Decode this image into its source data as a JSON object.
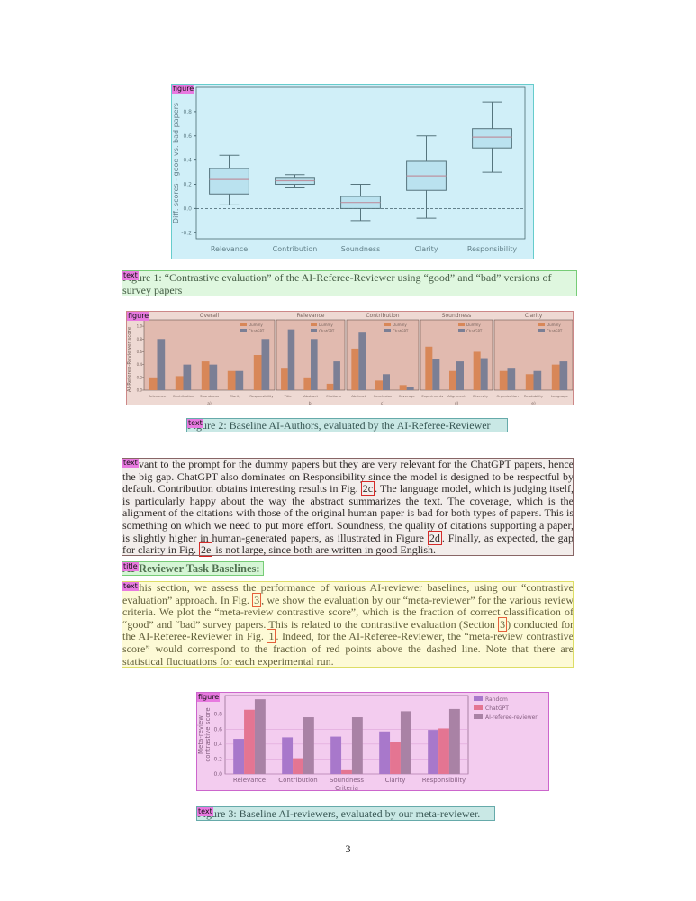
{
  "annotations": {
    "figure": "figure",
    "text": "text",
    "title": "title"
  },
  "figures": [
    {
      "type": "box",
      "ylabel": "Diff. scores - good vs. bad papers",
      "color": "#c8dde8",
      "point_color": "#e0707a",
      "categories": [
        "Relevance",
        "Contribution",
        "Soundness",
        "Clarity",
        "Responsibility"
      ],
      "boxes": [
        {
          "min": 0.03,
          "q1": 0.12,
          "median": 0.24,
          "q3": 0.33,
          "max": 0.44
        },
        {
          "min": 0.17,
          "q1": 0.2,
          "median": 0.23,
          "q3": 0.25,
          "max": 0.28
        },
        {
          "min": -0.1,
          "q1": 0,
          "median": 0.05,
          "q3": 0.1,
          "max": 0.2
        },
        {
          "min": -0.08,
          "q1": 0.15,
          "median": 0.27,
          "q3": 0.39,
          "max": 0.6
        },
        {
          "min": 0.3,
          "q1": 0.5,
          "median": 0.59,
          "q3": 0.66,
          "max": 0.88
        }
      ],
      "reference_line": 0,
      "ylim": [
        -0.25,
        1.0
      ],
      "yticks": [
        -0.2,
        {
          "value": 0,
          "label": "0.0"
        },
        0.2,
        0.4,
        0.6,
        0.8
      ]
    },
    {
      "type": "bar-panels",
      "ylabel": "AI-Referee-Reviewer score",
      "series": [
        {
          "name": "Dummy",
          "color": "#e08a4f"
        },
        {
          "name": "ChatGPT",
          "color": "#5b7fa6"
        }
      ],
      "ylim": [
        0,
        1.1
      ],
      "yticks": [
        {
          "value": 0,
          "label": "0.0"
        },
        0.2,
        0.4,
        0.6,
        0.8,
        {
          "value": 1,
          "label": "1.0"
        }
      ],
      "panels": [
        {
          "title": "Overall",
          "label": "a)",
          "categories": [
            "Relevance",
            "Contribution",
            "Soundness",
            "Clarity",
            "Responsibility"
          ],
          "values": [
            [
              0.2,
              0.22,
              0.45,
              0.3,
              0.55
            ],
            [
              0.8,
              0.4,
              0.4,
              0.3,
              0.8
            ]
          ]
        },
        {
          "title": "Relevance",
          "label": "b)",
          "categories": [
            "Title",
            "Abstract",
            "Citations"
          ],
          "values": [
            [
              0.35,
              0.2,
              0.1
            ],
            [
              0.95,
              0.8,
              0.45
            ]
          ]
        },
        {
          "title": "Contribution",
          "label": "c)",
          "categories": [
            "Abstract",
            "Conclusion",
            "Coverage"
          ],
          "values": [
            [
              0.65,
              0.15,
              0.08
            ],
            [
              0.9,
              0.25,
              0.05
            ]
          ]
        },
        {
          "title": "Soundness",
          "label": "d)",
          "categories": [
            "Experiments",
            "Alignment",
            "Diversity"
          ],
          "values": [
            [
              0.68,
              0.3,
              0.6
            ],
            [
              0.48,
              0.45,
              0.5
            ]
          ]
        },
        {
          "title": "Clarity",
          "label": "e)",
          "categories": [
            "Organization",
            "Readability",
            "Language"
          ],
          "values": [
            [
              0.3,
              0.25,
              0.4
            ],
            [
              0.35,
              0.3,
              0.45
            ]
          ]
        }
      ]
    },
    {
      "type": "bar",
      "xlabel": "Criteria",
      "ylabel_lines": [
        "Meta-review",
        "contrastive score"
      ],
      "categories": [
        "Relevance",
        "Contribution",
        "Soundness",
        "Clarity",
        "Responsibility"
      ],
      "series": [
        {
          "name": "Random",
          "color": "#8c7fc8",
          "values": [
            0.47,
            0.49,
            0.5,
            0.57,
            0.59
          ]
        },
        {
          "name": "ChatGPT",
          "color": "#e87a70",
          "values": [
            0.86,
            0.21,
            0.05,
            0.43,
            0.61
          ]
        },
        {
          "name": "AI-referee-reviewer",
          "color": "#8e8e8e",
          "values": [
            1.0,
            0.76,
            0.76,
            0.84,
            0.87
          ]
        }
      ],
      "ylim": [
        0,
        1.05
      ],
      "yticks": [
        {
          "value": 0,
          "label": "0.0"
        },
        0.2,
        0.4,
        0.6,
        0.8
      ]
    }
  ],
  "captions": [
    "Figure 1: “Contrastive evaluation” of the AI-Referee-Reviewer using “good” and “bad” versions of survey papers",
    "Figure 2: Baseline AI-Authors, evaluated by the AI-Referee-Reviewer",
    "Figure 3: Baseline AI-reviewers, evaluated by our meta-reviewer."
  ],
  "paragraphs": [
    [
      "relevant to the prompt for the dummy papers but they are very relevant for the ChatGPT papers, hence the big gap. ChatGPT also dominates on Responsibility since the model is designed to be respectful by default. Contribution obtains interesting results in Fig. ",
      "2c",
      ". The language model, which is judging itself, is particularly happy about the way the abstract summarizes the text. The coverage, which is the alignment of the citations with those of the original human paper is bad for both types of papers. This is something on which we need to put more effort. Soundness, the quality of citations supporting a paper, is slightly higher in human-generated papers, as illustrated in Figure ",
      "2d",
      ". Finally, as expected, the gap for clarity in Fig. ",
      "2e",
      " is not large, since both are written in good English."
    ],
    [
      "In this section, we assess the performance of various AI-reviewer baselines, using our “contrastive evaluation” approach. In Fig. ",
      "3",
      ", we show the evaluation by our “meta-reviewer” for the various review criteria. We plot the “meta-review contrastive score”, which is the fraction of correct classification of “good” and “bad” survey papers. This is related to the contrastive evaluation (Section ",
      "3",
      ") conducted for the AI-Referee-Reviewer in Fig. ",
      "1",
      ". Indeed, for the AI-Referee-Reviewer, the “meta-review contrastive score” would correspond to the fraction of red points above the dashed line. Note that there are statistical fluctuations for each experimental run."
    ]
  ],
  "section_title": "AI-Reviewer Task Baselines:",
  "page_number": "3"
}
